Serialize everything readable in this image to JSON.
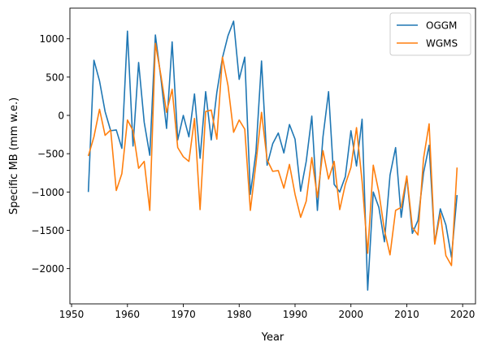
{
  "chart_data": {
    "type": "line",
    "title": "",
    "xlabel": "Year",
    "ylabel": "Specific MB (mm w.e.)",
    "xlim": [
      1949.7,
      2022.3
    ],
    "ylim": [
      -2460,
      1400
    ],
    "xticks": [
      1950,
      1960,
      1970,
      1980,
      1990,
      2000,
      2010,
      2020
    ],
    "yticks": [
      -2000,
      -1500,
      -1000,
      -500,
      0,
      500,
      1000
    ],
    "ytick_labels": [
      "−2000",
      "−1500",
      "−1000",
      "−500",
      "0",
      "500",
      "1000"
    ],
    "grid": false,
    "legend_position": "top-right",
    "x": [
      1953,
      1954,
      1955,
      1956,
      1957,
      1958,
      1959,
      1960,
      1961,
      1962,
      1963,
      1964,
      1965,
      1966,
      1967,
      1968,
      1969,
      1970,
      1971,
      1972,
      1973,
      1974,
      1975,
      1976,
      1977,
      1978,
      1979,
      1980,
      1981,
      1982,
      1983,
      1984,
      1985,
      1986,
      1987,
      1988,
      1989,
      1990,
      1991,
      1992,
      1993,
      1994,
      1995,
      1996,
      1997,
      1998,
      1999,
      2000,
      2001,
      2002,
      2003,
      2004,
      2005,
      2006,
      2007,
      2008,
      2009,
      2010,
      2011,
      2012,
      2013,
      2014,
      2015,
      2016,
      2017,
      2018,
      2019
    ],
    "series": [
      {
        "name": "OGGM",
        "color": "#1f77b4",
        "values": [
          -1000,
          720,
          450,
          50,
          -200,
          -190,
          -430,
          1100,
          -400,
          690,
          -90,
          -520,
          1050,
          480,
          -170,
          960,
          -320,
          0,
          -280,
          280,
          -560,
          310,
          -320,
          300,
          750,
          1040,
          1230,
          470,
          760,
          -1030,
          -480,
          710,
          -650,
          -370,
          -230,
          -490,
          -120,
          -310,
          -990,
          -600,
          -10,
          -1240,
          -280,
          310,
          -900,
          -1000,
          -800,
          -200,
          -660,
          -50,
          -2280,
          -1000,
          -1200,
          -1650,
          -780,
          -420,
          -1330,
          -800,
          -1540,
          -1370,
          -750,
          -390,
          -1670,
          -1220,
          -1430,
          -1850,
          -1040
        ]
      },
      {
        "name": "WGMS",
        "color": "#ff7f0e",
        "values": [
          -530,
          -280,
          80,
          -260,
          -190,
          -980,
          -760,
          -60,
          -200,
          -690,
          -600,
          -1240,
          940,
          520,
          40,
          340,
          -420,
          -540,
          -600,
          -40,
          -1230,
          50,
          70,
          -310,
          760,
          390,
          -220,
          -60,
          -180,
          -1240,
          -630,
          40,
          -580,
          -730,
          -720,
          -950,
          -640,
          -1030,
          -1330,
          -1120,
          -550,
          -1070,
          -460,
          -830,
          -600,
          -1230,
          -900,
          -680,
          -160,
          -860,
          -1800,
          -650,
          -1000,
          -1500,
          -1820,
          -1240,
          -1200,
          -790,
          -1460,
          -1560,
          -560,
          -110,
          -1680,
          -1280,
          -1830,
          -1960,
          -680
        ]
      }
    ]
  }
}
